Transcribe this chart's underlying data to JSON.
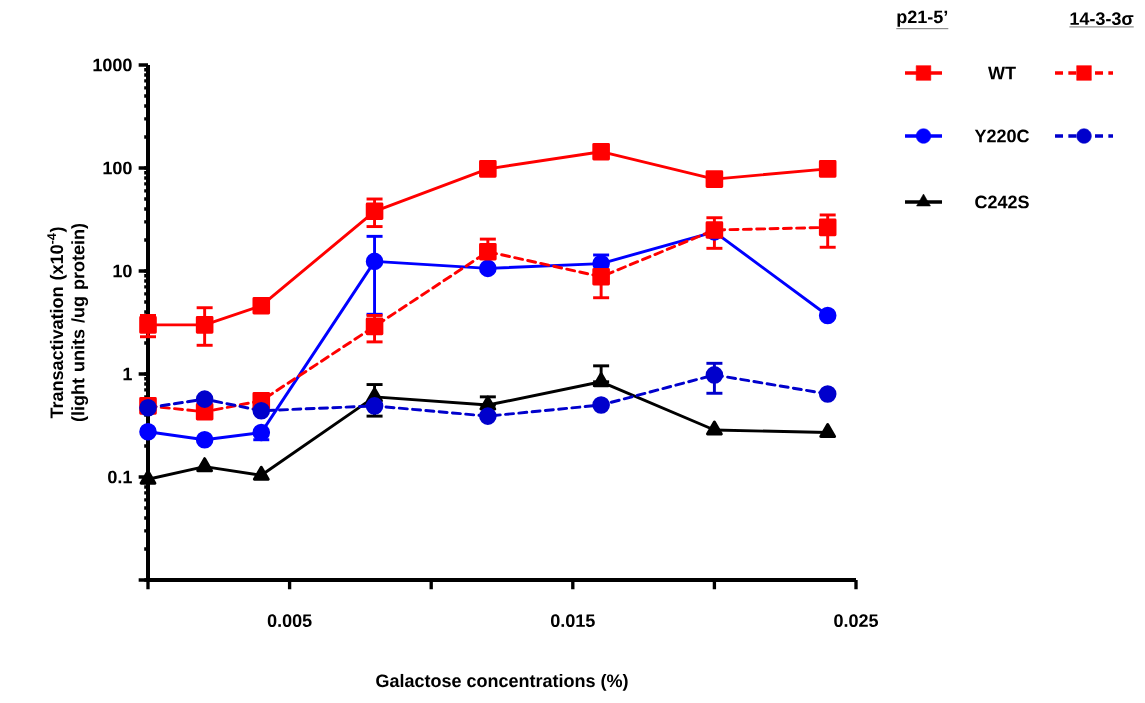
{
  "chart_data": {
    "type": "line",
    "xlabel": "Galactose concentrations (%)",
    "ylabel": "Transactivation (x10$^{-4}$) (light units /ug protein)",
    "legend_title": "p21-5’",
    "annotations": [
      "14-3-3σ"
    ],
    "legend": "top right",
    "log": "y",
    "x": [
      0,
      0.002,
      0.004,
      0.008,
      0.012,
      0.016,
      0.02,
      0.024
    ],
    "xlim": [
      0,
      0.025
    ],
    "xticks": [
      {
        "value": 0,
        "label": null
      },
      0.005,
      {
        "value": 0.01,
        "label": null
      },
      0.015,
      {
        "value": 0.02,
        "label": null
      },
      0.025
    ],
    "ylim": [
      0.01,
      1000
    ],
    "yticks": [
      {
        "value": 0.01,
        "label": null
      },
      0.1,
      1,
      10,
      100,
      1000
    ],
    "series": [
      {
        "name": "WT",
        "color": "#ff0000",
        "marker": "square",
        "line_style": "solid",
        "values": [
          3.0,
          3.0,
          4.6,
          38,
          98,
          144,
          78,
          98
        ],
        "errors": [
          [
            2.3,
            3.7
          ],
          [
            1.9,
            4.4
          ],
          null,
          [
            27,
            50
          ],
          null,
          null,
          null,
          null
        ]
      },
      {
        "name": "Y220C",
        "color": "#0000ff",
        "marker": "circle",
        "line_style": "solid",
        "values": [
          0.275,
          0.23,
          0.27,
          12.4,
          10.6,
          11.8,
          24,
          3.7
        ],
        "errors": [
          null,
          null,
          [
            0.23,
            0.27
          ],
          [
            3.8,
            21.7
          ],
          null,
          [
            11.8,
            14.3
          ],
          null,
          null
        ]
      },
      {
        "name": "C242S",
        "color": "#000000",
        "marker": "triangle",
        "line_style": "solid",
        "values": [
          0.095,
          0.126,
          0.104,
          0.6,
          0.5,
          0.84,
          0.286,
          0.27
        ],
        "errors": [
          null,
          null,
          null,
          [
            0.39,
            0.79
          ],
          [
            0.5,
            0.6
          ],
          [
            0.84,
            1.2
          ],
          null,
          null
        ]
      },
      {
        "color": "#ff0000",
        "marker": "square",
        "line_style": "dashed",
        "values": [
          0.49,
          0.43,
          0.55,
          2.9,
          15.4,
          8.8,
          25,
          26.5
        ],
        "errors": [
          null,
          null,
          null,
          [
            2.05,
            3.7
          ],
          [
            15.4,
            20.4
          ],
          [
            5.5,
            8.8
          ],
          [
            16.6,
            32.9
          ],
          [
            17,
            35
          ]
        ]
      },
      {
        "color": "#0000cc",
        "marker": "circle",
        "line_style": "dashed",
        "values": [
          0.47,
          0.57,
          0.44,
          0.49,
          0.39,
          0.5,
          0.98,
          0.64
        ],
        "errors": [
          null,
          null,
          null,
          null,
          null,
          null,
          [
            0.65,
            1.27
          ],
          null
        ]
      }
    ]
  }
}
